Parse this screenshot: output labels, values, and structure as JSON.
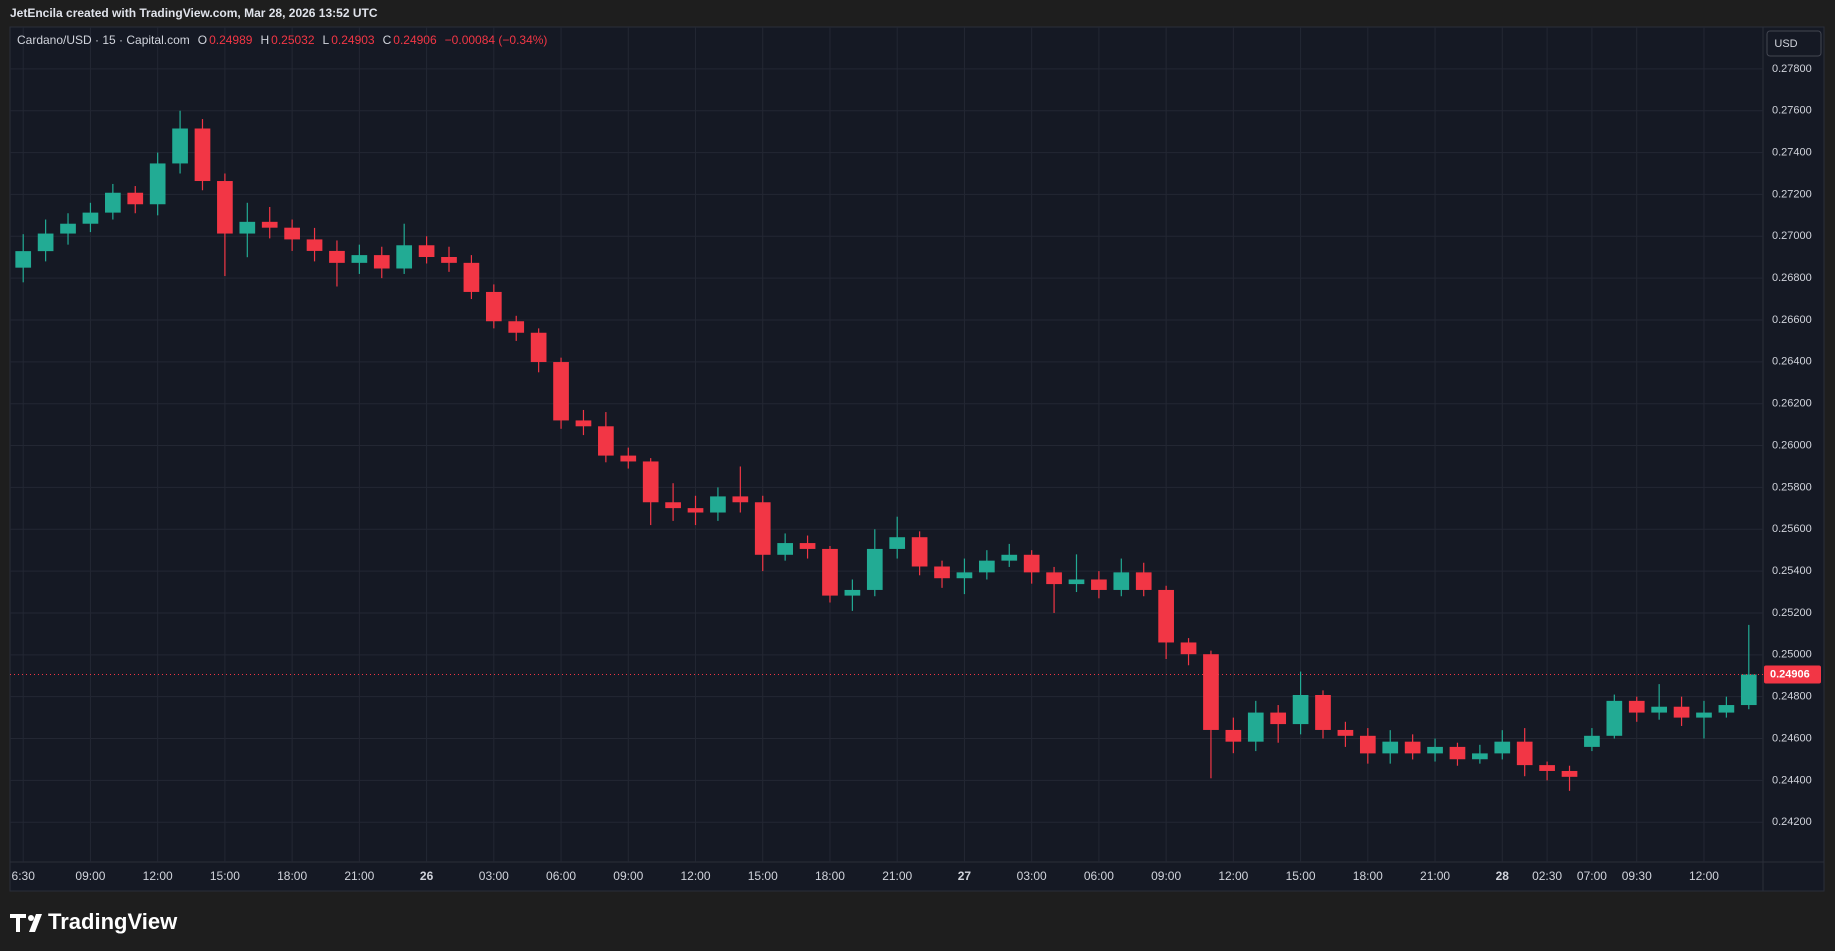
{
  "header": {
    "attribution": "JetEncila created with TradingView.com, Mar 28, 2026 13:52 UTC"
  },
  "footer": {
    "brand": "TradingView"
  },
  "chart_data": {
    "type": "candlestick",
    "symbol": "Cardano/USD · 15 · Capital.com",
    "legend": {
      "open_label": "O",
      "open": 0.24989,
      "high_label": "H",
      "high": 0.25032,
      "low_label": "L",
      "low": 0.24903,
      "close_label": "C",
      "close": 0.24906,
      "change": "−0.00084 (−0.34%)"
    },
    "currency": "USD",
    "last_price": 0.24906,
    "up_color": "#22ab94",
    "down_color": "#f23645",
    "grid": true,
    "categories": [
      "6:30",
      null,
      null,
      "09:00",
      null,
      null,
      "12:00",
      null,
      null,
      "15:00",
      null,
      null,
      "18:00",
      null,
      null,
      "21:00",
      null,
      null,
      "26",
      null,
      null,
      "03:00",
      null,
      null,
      "06:00",
      null,
      null,
      "09:00",
      null,
      null,
      "12:00",
      null,
      null,
      "15:00",
      null,
      null,
      "18:00",
      null,
      null,
      "21:00",
      null,
      null,
      "27",
      null,
      null,
      "03:00",
      null,
      null,
      "06:00",
      null,
      null,
      "09:00",
      null,
      null,
      "12:00",
      null,
      null,
      "15:00",
      null,
      null,
      "18:00",
      null,
      null,
      "21:00",
      null,
      null,
      "28",
      null,
      "02:30",
      null,
      "07:00",
      null,
      "09:30",
      null,
      null,
      "12:00",
      null,
      null
    ],
    "open": [
      0.2685,
      0.26929,
      0.27013,
      0.2706,
      0.27113,
      0.27208,
      0.27153,
      0.27348,
      0.27515,
      0.27264,
      0.27013,
      0.27069,
      0.27041,
      0.26985,
      0.2693,
      0.26873,
      0.2691,
      0.26846,
      0.26957,
      0.26901,
      0.26873,
      0.26734,
      0.26594,
      0.26539,
      0.26399,
      0.2612,
      0.26092,
      0.25952,
      0.25924,
      0.25729,
      0.25701,
      0.2568,
      0.25757,
      0.25729,
      0.25478,
      0.25534,
      0.25506,
      0.25283,
      0.2531,
      0.25506,
      0.25562,
      0.25422,
      0.25366,
      0.25394,
      0.2545,
      0.25478,
      0.25394,
      0.25338,
      0.2536,
      0.2531,
      0.25394,
      0.2531,
      0.25059,
      0.25003,
      0.24641,
      0.24585,
      0.24724,
      0.24669,
      0.24808,
      0.24641,
      0.24613,
      0.24529,
      0.24585,
      0.24529,
      0.2456,
      0.24501,
      0.24529,
      0.24585,
      0.24473,
      0.24445,
      0.2456,
      0.24613,
      0.2478,
      0.24724,
      0.24752,
      0.247,
      0.24724,
      0.2476
    ],
    "high": [
      0.2701,
      0.2708,
      0.2711,
      0.2716,
      0.2725,
      0.2724,
      0.274,
      0.276,
      0.2756,
      0.273,
      0.2716,
      0.2714,
      0.2708,
      0.2704,
      0.2698,
      0.2696,
      0.2695,
      0.2706,
      0.27,
      0.2695,
      0.2691,
      0.2677,
      0.2662,
      0.2656,
      0.2642,
      0.2617,
      0.2616,
      0.2599,
      0.2594,
      0.2582,
      0.2576,
      0.258,
      0.259,
      0.2576,
      0.2558,
      0.2557,
      0.2552,
      0.2536,
      0.256,
      0.2566,
      0.2559,
      0.2545,
      0.2546,
      0.255,
      0.2553,
      0.255,
      0.2542,
      0.2548,
      0.254,
      0.2546,
      0.2544,
      0.2533,
      0.2508,
      0.2502,
      0.247,
      0.2478,
      0.2476,
      0.2492,
      0.2483,
      0.2468,
      0.2465,
      0.2464,
      0.2462,
      0.246,
      0.2458,
      0.2457,
      0.2464,
      0.2465,
      0.2449,
      0.2447,
      0.2465,
      0.2481,
      0.248,
      0.2486,
      0.248,
      0.2478,
      0.248,
      0.25143
    ],
    "low": [
      0.2678,
      0.2688,
      0.2696,
      0.2702,
      0.2708,
      0.2711,
      0.271,
      0.273,
      0.2722,
      0.2681,
      0.269,
      0.2699,
      0.2693,
      0.2688,
      0.2676,
      0.2682,
      0.268,
      0.2682,
      0.2687,
      0.2683,
      0.267,
      0.2656,
      0.265,
      0.2635,
      0.2608,
      0.2605,
      0.2592,
      0.2589,
      0.2562,
      0.2564,
      0.2562,
      0.2564,
      0.2568,
      0.254,
      0.2545,
      0.2546,
      0.2525,
      0.2521,
      0.2528,
      0.2546,
      0.2538,
      0.2532,
      0.2529,
      0.2536,
      0.2542,
      0.2534,
      0.252,
      0.253,
      0.2527,
      0.2528,
      0.2528,
      0.2498,
      0.2495,
      0.2441,
      0.2453,
      0.2454,
      0.2458,
      0.2462,
      0.246,
      0.2456,
      0.2448,
      0.2448,
      0.245,
      0.2449,
      0.2447,
      0.2448,
      0.245,
      0.2442,
      0.244,
      0.2435,
      0.2454,
      0.246,
      0.2468,
      0.2469,
      0.2466,
      0.246,
      0.247,
      0.2474
    ],
    "close": [
      0.26929,
      0.27013,
      0.2706,
      0.27113,
      0.27208,
      0.27153,
      0.27348,
      0.27515,
      0.27264,
      0.27013,
      0.27069,
      0.27041,
      0.26985,
      0.2693,
      0.26873,
      0.2691,
      0.26846,
      0.26957,
      0.26901,
      0.26873,
      0.26734,
      0.26594,
      0.26539,
      0.26399,
      0.2612,
      0.26092,
      0.25952,
      0.25924,
      0.25729,
      0.25701,
      0.2568,
      0.25757,
      0.25729,
      0.25478,
      0.25534,
      0.25506,
      0.25283,
      0.2531,
      0.25506,
      0.25562,
      0.25422,
      0.25366,
      0.25394,
      0.2545,
      0.25478,
      0.25394,
      0.25338,
      0.2536,
      0.2531,
      0.25394,
      0.2531,
      0.25059,
      0.25003,
      0.24641,
      0.24585,
      0.24724,
      0.24669,
      0.24808,
      0.24641,
      0.24613,
      0.24529,
      0.24585,
      0.24529,
      0.2456,
      0.24501,
      0.24529,
      0.24585,
      0.24473,
      0.24445,
      0.24417,
      0.24613,
      0.2478,
      0.24724,
      0.24752,
      0.247,
      0.24724,
      0.2476,
      0.24906
    ],
    "ylim": [
      0.2401,
      0.28
    ],
    "yticks": [
      {
        "value": 0.242,
        "label": "0.24200"
      },
      {
        "value": 0.244,
        "label": "0.24400"
      },
      {
        "value": 0.246,
        "label": "0.24600"
      },
      {
        "value": 0.248,
        "label": "0.24800"
      },
      {
        "value": 0.25,
        "label": "0.25000"
      },
      {
        "value": 0.252,
        "label": "0.25200"
      },
      {
        "value": 0.254,
        "label": "0.25400"
      },
      {
        "value": 0.256,
        "label": "0.25600"
      },
      {
        "value": 0.258,
        "label": "0.25800"
      },
      {
        "value": 0.26,
        "label": "0.26000"
      },
      {
        "value": 0.262,
        "label": "0.26200"
      },
      {
        "value": 0.264,
        "label": "0.26400"
      },
      {
        "value": 0.266,
        "label": "0.26600"
      },
      {
        "value": 0.268,
        "label": "0.26800"
      },
      {
        "value": 0.27,
        "label": "0.27000"
      },
      {
        "value": 0.272,
        "label": "0.27200"
      },
      {
        "value": 0.274,
        "label": "0.27400"
      },
      {
        "value": 0.276,
        "label": "0.27600"
      },
      {
        "value": 0.278,
        "label": "0.27800"
      }
    ]
  }
}
